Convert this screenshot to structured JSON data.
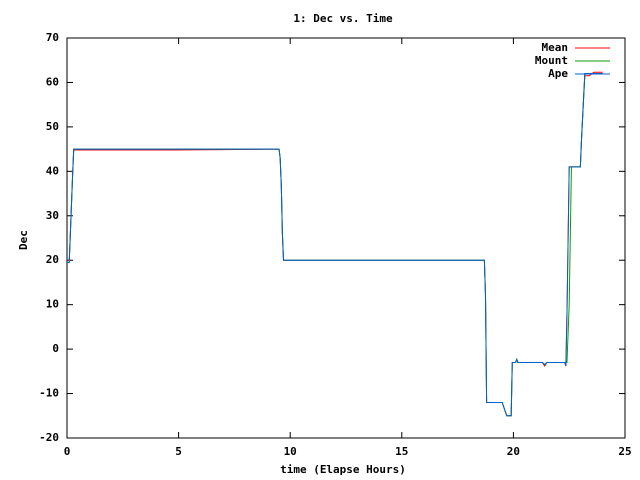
{
  "chart_data": {
    "type": "line",
    "title": "1: Dec vs. Time",
    "x_label": "time (Elapse Hours)",
    "y_label": "Dec",
    "xlim": [
      0,
      25
    ],
    "xticks": [
      0,
      5,
      10,
      15,
      20,
      25
    ],
    "ylim": [
      -20,
      70
    ],
    "yticks": [
      -20,
      -10,
      0,
      10,
      20,
      30,
      40,
      50,
      60,
      70
    ],
    "legend": "top-right",
    "grid": false,
    "series": [
      {
        "name": "Mean",
        "color": "#ff0000",
        "x": [
          0,
          0.1,
          0.15,
          0.25,
          0.3,
          4.8,
          9.5,
          9.55,
          9.6,
          9.65,
          9.7,
          18.7,
          18.75,
          18.8,
          19.5,
          19.7,
          19.9,
          19.95,
          20.1,
          20.15,
          20.2,
          21.3,
          21.4,
          21.5,
          22.3,
          22.35,
          22.4,
          22.5,
          23.0,
          23.05,
          23.15,
          23.2,
          23.4,
          23.6,
          24.0
        ],
        "values": [
          20,
          20,
          26,
          39,
          44.8,
          44.8,
          45,
          43,
          37,
          26,
          20,
          20,
          12,
          -12,
          -12,
          -15,
          -15,
          -3,
          -3,
          -2.3,
          -3,
          -3,
          -3.8,
          -3,
          -3,
          -3.8,
          8,
          41,
          41,
          47,
          57,
          61.5,
          61.5,
          62.3,
          62.3
        ]
      },
      {
        "name": "Mount",
        "color": "#00a000",
        "x": [
          0,
          0.1,
          0.15,
          0.25,
          0.3,
          9.5,
          9.55,
          9.6,
          9.65,
          9.7,
          18.7,
          18.75,
          18.8,
          19.5,
          19.7,
          19.9,
          19.95,
          20.1,
          20.15,
          20.2,
          21.3,
          21.4,
          21.5,
          22.4,
          22.5,
          22.6,
          23.0,
          23.05,
          23.15,
          23.2,
          24.0
        ],
        "values": [
          19.5,
          19.5,
          26,
          39,
          45,
          45,
          43,
          37,
          26,
          20,
          20,
          12,
          -12,
          -12,
          -15,
          -15,
          -3,
          -3,
          -2.3,
          -3,
          -3,
          -3.5,
          -3,
          -3,
          10,
          41,
          41,
          47,
          57,
          62,
          62
        ]
      },
      {
        "name": "Ape",
        "color": "#0060d0",
        "x": [
          0,
          0.1,
          0.15,
          0.25,
          0.3,
          9.5,
          9.55,
          9.6,
          9.65,
          9.7,
          18.7,
          18.75,
          18.8,
          19.5,
          19.7,
          19.9,
          19.95,
          20.1,
          20.15,
          20.2,
          21.3,
          21.4,
          21.5,
          22.3,
          22.35,
          22.4,
          22.5,
          23.0,
          23.05,
          23.15,
          23.2,
          24.0
        ],
        "values": [
          19.5,
          19.5,
          26,
          39,
          45,
          45,
          43,
          37,
          26,
          20,
          20,
          12,
          -12,
          -12,
          -15,
          -15,
          -3,
          -3,
          -2.3,
          -3,
          -3,
          -3.5,
          -3,
          -3,
          -3.8,
          8,
          41,
          41,
          47,
          57,
          62,
          62
        ]
      }
    ]
  }
}
